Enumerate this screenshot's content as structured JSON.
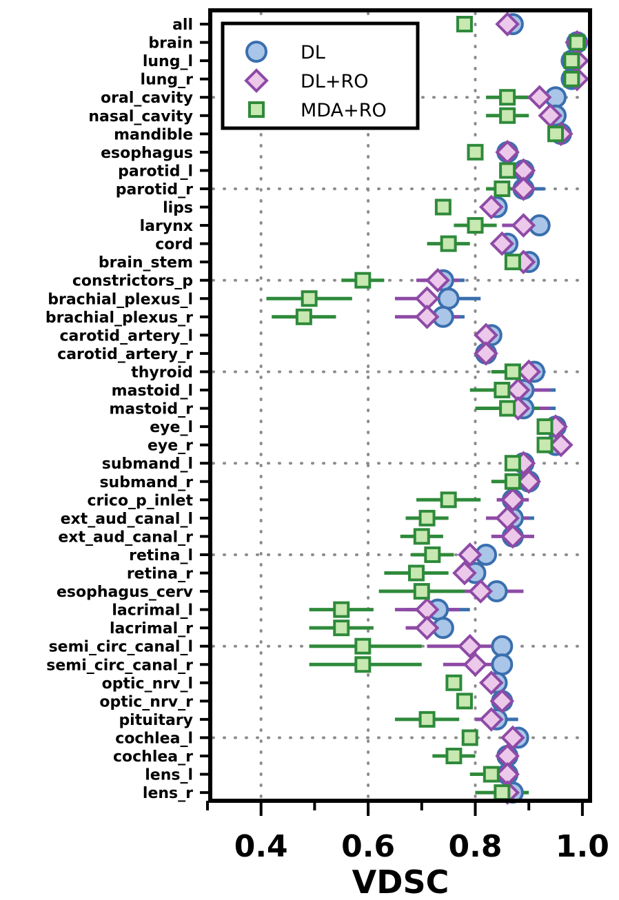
{
  "chart_data": {
    "type": "scatter",
    "orientation": "horizontal",
    "xlabel": "VDSC",
    "xlim": [
      0.3,
      1.0
    ],
    "xticks": [
      0.4,
      0.6,
      0.8,
      1.0
    ],
    "xtick_labels": [
      "0.4",
      "0.6",
      "0.8",
      "1.0"
    ],
    "grid": "dotted, every fourth category and x ticks",
    "legend_position": "top-left",
    "categories": [
      "all",
      "brain",
      "lung_l",
      "lung_r",
      "oral_cavity",
      "nasal_cavity",
      "mandible",
      "esophagus",
      "parotid_l",
      "parotid_r",
      "lips",
      "larynx",
      "cord",
      "brain_stem",
      "constrictors_p",
      "brachial_plexus_l",
      "brachial_plexus_r",
      "carotid_artery_l",
      "carotid_artery_r",
      "thyroid",
      "mastoid_l",
      "mastoid_r",
      "eye_l",
      "eye_r",
      "submand_l",
      "submand_r",
      "crico_p_inlet",
      "ext_aud_canal_l",
      "ext_aud_canal_r",
      "retina_l",
      "retina_r",
      "esophagus_cerv",
      "lacrimal_l",
      "lacrimal_r",
      "semi_circ_canal_l",
      "semi_circ_canal_r",
      "optic_nrv_l",
      "optic_nrv_r",
      "pituitary",
      "cochlea_l",
      "cochlea_r",
      "lens_l",
      "lens_r"
    ],
    "series": [
      {
        "name": "DL",
        "marker": "circle",
        "color": "#3a6fae",
        "fill": "#a9c5e8",
        "values": [
          0.87,
          0.99,
          0.98,
          0.98,
          0.95,
          0.95,
          0.96,
          0.86,
          0.89,
          0.89,
          0.84,
          0.92,
          0.86,
          0.9,
          0.74,
          0.75,
          0.74,
          0.83,
          0.82,
          0.91,
          0.89,
          0.89,
          0.95,
          0.95,
          0.89,
          0.9,
          0.87,
          0.87,
          0.87,
          0.82,
          0.8,
          0.84,
          0.73,
          0.74,
          0.85,
          0.85,
          0.84,
          0.85,
          0.84,
          0.88,
          0.86,
          0.86,
          0.87
        ],
        "err_low": [
          null,
          null,
          null,
          null,
          null,
          null,
          null,
          null,
          null,
          0.85,
          null,
          null,
          null,
          null,
          0.7,
          0.7,
          0.7,
          null,
          null,
          null,
          0.83,
          0.83,
          null,
          null,
          null,
          null,
          null,
          0.84,
          null,
          null,
          null,
          0.8,
          0.67,
          null,
          null,
          null,
          null,
          null,
          0.8,
          null,
          null,
          null,
          null
        ],
        "err_high": [
          null,
          null,
          null,
          null,
          null,
          null,
          null,
          null,
          null,
          0.93,
          null,
          null,
          null,
          null,
          0.78,
          0.81,
          0.78,
          null,
          null,
          null,
          0.95,
          0.95,
          null,
          null,
          null,
          null,
          null,
          0.91,
          null,
          null,
          null,
          0.88,
          0.79,
          null,
          null,
          null,
          null,
          null,
          0.88,
          null,
          null,
          null,
          null
        ]
      },
      {
        "name": "DL+RO",
        "marker": "diamond",
        "color": "#8e4aa6",
        "fill": "#ecc8ea",
        "values": [
          0.86,
          0.99,
          0.99,
          0.99,
          0.92,
          0.94,
          0.96,
          0.86,
          0.89,
          0.89,
          0.83,
          0.89,
          0.85,
          0.89,
          0.73,
          0.71,
          0.71,
          0.82,
          0.82,
          0.9,
          0.88,
          0.88,
          0.95,
          0.96,
          0.89,
          0.9,
          0.87,
          0.86,
          0.87,
          0.79,
          0.78,
          0.81,
          0.71,
          0.71,
          0.79,
          0.8,
          0.83,
          0.85,
          0.83,
          0.87,
          0.86,
          0.86,
          0.86
        ],
        "err_low": [
          null,
          null,
          null,
          null,
          0.88,
          null,
          null,
          null,
          null,
          null,
          null,
          0.85,
          null,
          null,
          0.69,
          0.65,
          0.65,
          0.8,
          0.8,
          null,
          0.82,
          0.82,
          null,
          null,
          null,
          null,
          0.84,
          0.82,
          0.83,
          null,
          null,
          0.72,
          0.65,
          0.67,
          0.71,
          0.74,
          null,
          null,
          0.8,
          null,
          null,
          null,
          null
        ],
        "err_high": [
          null,
          null,
          null,
          null,
          0.96,
          null,
          null,
          null,
          null,
          null,
          null,
          0.93,
          null,
          null,
          0.77,
          0.77,
          0.77,
          0.84,
          0.84,
          null,
          0.94,
          0.94,
          null,
          null,
          null,
          null,
          0.9,
          0.9,
          0.91,
          null,
          null,
          0.89,
          0.77,
          0.75,
          0.87,
          0.86,
          null,
          null,
          0.86,
          null,
          null,
          null,
          null
        ]
      },
      {
        "name": "MDA+RO",
        "marker": "square",
        "color": "#2e8a3a",
        "fill": "#c7e8b0",
        "values": [
          0.78,
          0.99,
          0.98,
          0.98,
          0.86,
          0.86,
          0.95,
          0.8,
          0.86,
          0.85,
          0.74,
          0.8,
          0.75,
          0.87,
          0.59,
          0.49,
          0.48,
          null,
          null,
          0.87,
          0.85,
          0.86,
          0.93,
          0.93,
          0.87,
          0.87,
          0.75,
          0.71,
          0.7,
          0.72,
          0.69,
          0.7,
          0.55,
          0.55,
          0.59,
          0.59,
          0.76,
          0.78,
          0.71,
          0.79,
          0.76,
          0.83,
          0.85
        ],
        "err_low": [
          null,
          null,
          null,
          null,
          0.82,
          0.82,
          null,
          null,
          null,
          0.82,
          null,
          0.76,
          0.71,
          null,
          0.55,
          0.41,
          0.42,
          null,
          null,
          0.83,
          0.79,
          0.8,
          null,
          null,
          null,
          0.83,
          0.69,
          0.67,
          0.66,
          0.68,
          0.63,
          0.62,
          0.49,
          0.49,
          0.49,
          0.49,
          null,
          null,
          0.65,
          null,
          0.72,
          0.79,
          0.8
        ],
        "err_high": [
          null,
          null,
          null,
          null,
          0.9,
          0.9,
          null,
          null,
          null,
          0.88,
          null,
          0.84,
          0.79,
          null,
          0.63,
          0.57,
          0.54,
          null,
          null,
          0.91,
          0.91,
          0.92,
          null,
          null,
          null,
          0.91,
          0.81,
          0.75,
          0.74,
          0.76,
          0.75,
          0.78,
          0.61,
          0.61,
          0.7,
          0.7,
          null,
          null,
          0.77,
          null,
          0.8,
          0.87,
          0.9
        ]
      }
    ]
  }
}
